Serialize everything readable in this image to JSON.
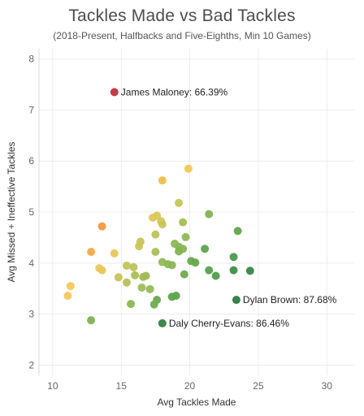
{
  "chart_data": {
    "type": "scatter",
    "title": "Tackles Made vs Bad Tackles",
    "subtitle": "(2018-Present, Halfbacks and Five-Eighths, Min 10 Games)",
    "xlabel": "Avg Tackles Made",
    "ylabel": "Avg Missed + Ineffective Tackles",
    "xlim": [
      9,
      32
    ],
    "ylim": [
      1.8,
      8.2
    ],
    "x_ticks": [
      10,
      15,
      20,
      25,
      30
    ],
    "y_ticks": [
      2,
      3,
      4,
      5,
      6,
      7,
      8
    ],
    "grid": true,
    "color_scale": [
      "#c0313c",
      "#f2a04a",
      "#e0c95a",
      "#a8c25a",
      "#4f9e4c",
      "#2f7a3e"
    ],
    "points": [
      {
        "x": 14.5,
        "y": 7.35,
        "color": "#c0313c",
        "label": "James Maloney: 66.39%"
      },
      {
        "x": 23.4,
        "y": 3.28,
        "color": "#2f7a3e",
        "label": "Dylan Brown: 87.68%"
      },
      {
        "x": 18.0,
        "y": 2.82,
        "color": "#357f42",
        "label": "Daly Cherry-Evans: 86.46%"
      },
      {
        "x": 19.9,
        "y": 5.85,
        "color": "#f0c852"
      },
      {
        "x": 18.0,
        "y": 5.62,
        "color": "#f2bd4d"
      },
      {
        "x": 19.2,
        "y": 5.18,
        "color": "#c6c65a"
      },
      {
        "x": 21.4,
        "y": 4.96,
        "color": "#7fb451"
      },
      {
        "x": 17.3,
        "y": 4.89,
        "color": "#e3c755"
      },
      {
        "x": 17.6,
        "y": 4.93,
        "color": "#d9c658"
      },
      {
        "x": 17.9,
        "y": 4.82,
        "color": "#d5c658"
      },
      {
        "x": 18.0,
        "y": 4.76,
        "color": "#c9c559"
      },
      {
        "x": 19.5,
        "y": 4.8,
        "color": "#a6bf57"
      },
      {
        "x": 13.6,
        "y": 4.72,
        "color": "#ee9b40"
      },
      {
        "x": 23.5,
        "y": 4.63,
        "color": "#5ea54d"
      },
      {
        "x": 17.5,
        "y": 4.56,
        "color": "#bcc35a"
      },
      {
        "x": 16.4,
        "y": 4.42,
        "color": "#c6c45a"
      },
      {
        "x": 16.3,
        "y": 4.33,
        "color": "#cbc559"
      },
      {
        "x": 19.7,
        "y": 4.51,
        "color": "#8fb954"
      },
      {
        "x": 18.9,
        "y": 4.38,
        "color": "#8db853"
      },
      {
        "x": 19.2,
        "y": 4.32,
        "color": "#89b752"
      },
      {
        "x": 19.5,
        "y": 4.28,
        "color": "#84b652"
      },
      {
        "x": 19.2,
        "y": 4.23,
        "color": "#7fb451"
      },
      {
        "x": 21.1,
        "y": 4.28,
        "color": "#5ea54d"
      },
      {
        "x": 17.5,
        "y": 4.22,
        "color": "#a9bf58"
      },
      {
        "x": 14.5,
        "y": 4.19,
        "color": "#e6c75a"
      },
      {
        "x": 12.8,
        "y": 4.22,
        "color": "#f2ab46"
      },
      {
        "x": 23.2,
        "y": 4.12,
        "color": "#4a9a4a"
      },
      {
        "x": 18.0,
        "y": 4.02,
        "color": "#96ba55"
      },
      {
        "x": 18.4,
        "y": 3.98,
        "color": "#8fb853"
      },
      {
        "x": 18.7,
        "y": 3.96,
        "color": "#8ab752"
      },
      {
        "x": 20.1,
        "y": 4.04,
        "color": "#6aa94f"
      },
      {
        "x": 20.4,
        "y": 4.01,
        "color": "#66a84e"
      },
      {
        "x": 15.4,
        "y": 3.95,
        "color": "#c2c45a"
      },
      {
        "x": 15.9,
        "y": 3.92,
        "color": "#bdc35a"
      },
      {
        "x": 13.4,
        "y": 3.9,
        "color": "#e9c85b"
      },
      {
        "x": 13.6,
        "y": 3.86,
        "color": "#e7c75b"
      },
      {
        "x": 21.4,
        "y": 3.86,
        "color": "#55a24c"
      },
      {
        "x": 23.2,
        "y": 3.86,
        "color": "#3f8f46"
      },
      {
        "x": 24.4,
        "y": 3.85,
        "color": "#378646"
      },
      {
        "x": 16.0,
        "y": 3.76,
        "color": "#a9bf58"
      },
      {
        "x": 16.6,
        "y": 3.73,
        "color": "#a1bd57"
      },
      {
        "x": 16.8,
        "y": 3.75,
        "color": "#9ebc56"
      },
      {
        "x": 19.6,
        "y": 3.78,
        "color": "#6fab50"
      },
      {
        "x": 21.9,
        "y": 3.75,
        "color": "#4e9e4b"
      },
      {
        "x": 14.8,
        "y": 3.72,
        "color": "#c7c45a"
      },
      {
        "x": 15.4,
        "y": 3.62,
        "color": "#b7c159"
      },
      {
        "x": 16.5,
        "y": 3.52,
        "color": "#9fbd57"
      },
      {
        "x": 17.1,
        "y": 3.49,
        "color": "#94ba55"
      },
      {
        "x": 11.3,
        "y": 3.55,
        "color": "#f3c95b"
      },
      {
        "x": 11.1,
        "y": 3.36,
        "color": "#f5c95b"
      },
      {
        "x": 18.7,
        "y": 3.34,
        "color": "#5ea54d"
      },
      {
        "x": 19.0,
        "y": 3.36,
        "color": "#5aa34d"
      },
      {
        "x": 17.6,
        "y": 3.28,
        "color": "#69a94f"
      },
      {
        "x": 15.7,
        "y": 3.2,
        "color": "#8ab752"
      },
      {
        "x": 17.4,
        "y": 3.19,
        "color": "#72ad50"
      },
      {
        "x": 12.8,
        "y": 2.88,
        "color": "#7db352"
      }
    ]
  }
}
